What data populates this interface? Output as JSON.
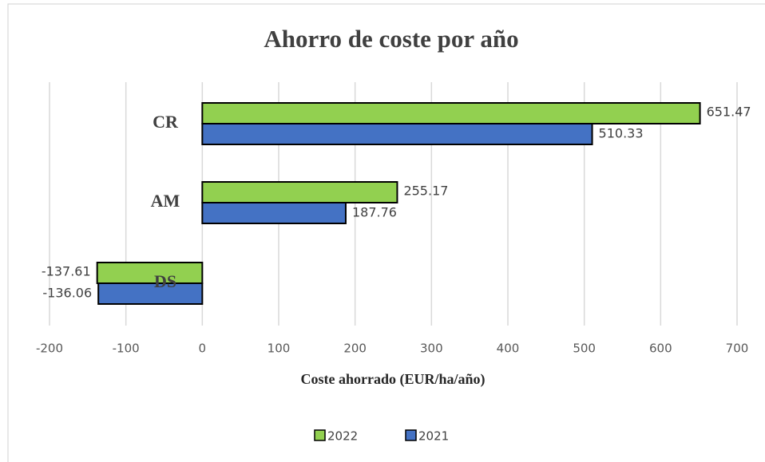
{
  "chart_data": {
    "type": "hbar",
    "title": "Ahorro de coste por año",
    "xlabel": "Coste ahorrado (EUR/ha/año)",
    "categories": [
      "CR",
      "AM",
      "DS"
    ],
    "series": [
      {
        "name": "2022",
        "color": "#92d050",
        "values": [
          651.47,
          255.17,
          -137.61
        ]
      },
      {
        "name": "2021",
        "color": "#4472c4",
        "values": [
          510.33,
          187.76,
          -136.06
        ]
      }
    ],
    "xlim": [
      -200,
      700
    ],
    "xticks": [
      -200,
      -100,
      0,
      100,
      200,
      300,
      400,
      500,
      600,
      700
    ],
    "grid": true,
    "legend": "bottom"
  }
}
